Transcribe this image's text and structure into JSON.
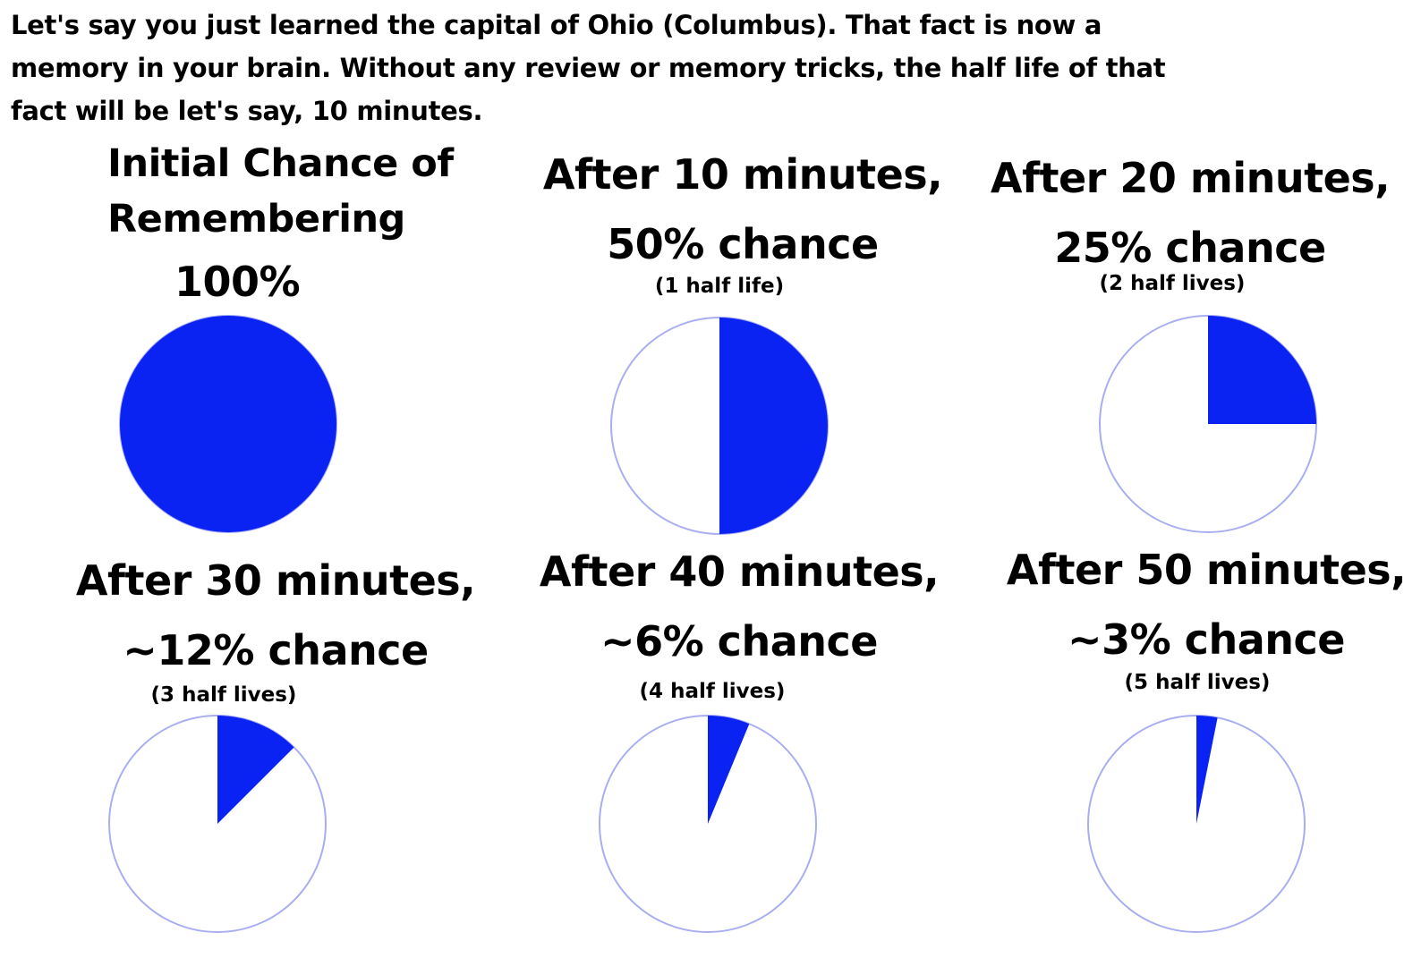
{
  "intro_lines": [
    "Let's say you just learned the capital of Ohio (Columbus). That fact is now a",
    "memory in your brain. Without any review or memory tricks, the half life of that",
    "fact will be let's say, 10 minutes."
  ],
  "colors": {
    "fill": "#0a23f2",
    "outline": "#a9aef0",
    "empty": "#ffffff"
  },
  "chart_data": [
    {
      "type": "pie",
      "title_lines": [
        "Initial Chance of",
        "Remembering"
      ],
      "headline": "100%",
      "note": "",
      "values": [
        100,
        0
      ]
    },
    {
      "type": "pie",
      "title_lines": [
        "After 10 minutes,"
      ],
      "headline": "50% chance",
      "note": "(1 half life)",
      "values": [
        50,
        50
      ]
    },
    {
      "type": "pie",
      "title_lines": [
        "After 20 minutes,"
      ],
      "headline": "25% chance",
      "note": "(2 half lives)",
      "values": [
        25,
        75
      ]
    },
    {
      "type": "pie",
      "title_lines": [
        "After 30 minutes,"
      ],
      "headline": "~12% chance",
      "note": "(3 half lives)",
      "values": [
        12.5,
        87.5
      ]
    },
    {
      "type": "pie",
      "title_lines": [
        "After 40 minutes,"
      ],
      "headline": "~6% chance",
      "note": "(4 half lives)",
      "values": [
        6.25,
        93.75
      ]
    },
    {
      "type": "pie",
      "title_lines": [
        "After 50 minutes,"
      ],
      "headline": "~3% chance",
      "note": "(5 half lives)",
      "values": [
        3.125,
        96.875
      ]
    }
  ]
}
